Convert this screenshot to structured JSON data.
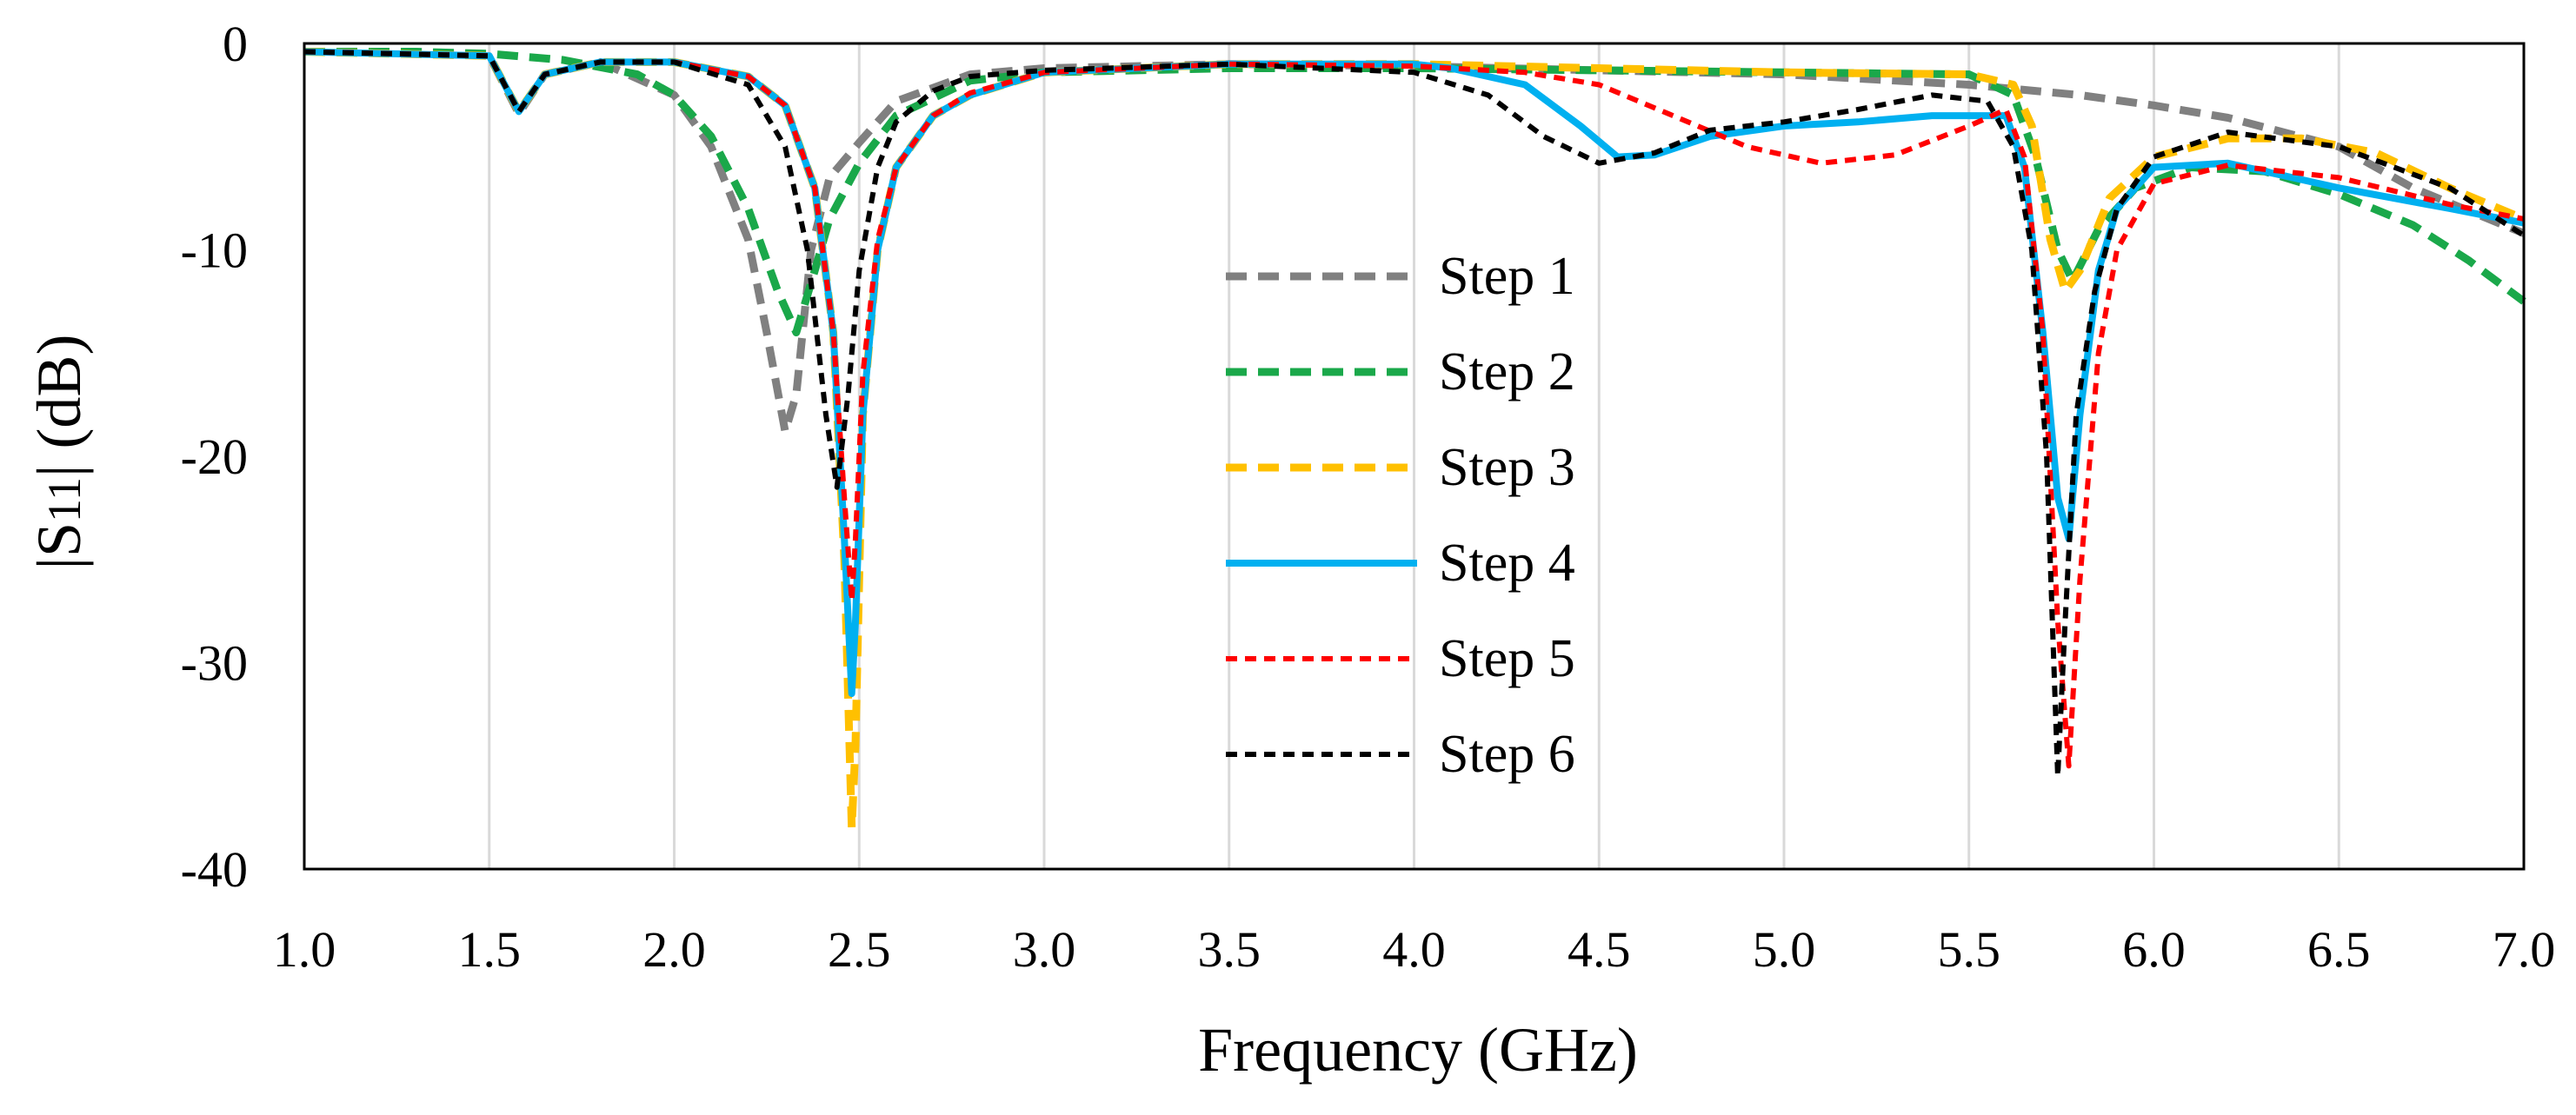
{
  "chart_data": {
    "type": "line",
    "title": "",
    "xlabel": "Frequency (GHz)",
    "ylabel": "|S11| (dB)",
    "xlim": [
      1.0,
      7.0
    ],
    "ylim": [
      -40,
      0
    ],
    "xticks": [
      1.0,
      1.5,
      2.0,
      2.5,
      3.0,
      3.5,
      4.0,
      4.5,
      5.0,
      5.5,
      6.0,
      6.5,
      7.0
    ],
    "xtick_labels": [
      "1.0",
      "1.5",
      "2.0",
      "2.5",
      "3.0",
      "3.5",
      "4.0",
      "4.5",
      "5.0",
      "5.5",
      "6.0",
      "6.5",
      "7.0"
    ],
    "yticks": [
      0,
      -10,
      -20,
      -30,
      -40
    ],
    "ytick_labels": [
      "0",
      "-10",
      "-20",
      "-30",
      "-40"
    ],
    "grid": "vertical",
    "legend_position": "center",
    "series": [
      {
        "name": "Step 1",
        "color": "#808080",
        "style": "dashed-thick",
        "x": [
          1.0,
          1.3,
          1.5,
          1.58,
          1.65,
          1.8,
          2.0,
          2.1,
          2.2,
          2.25,
          2.3,
          2.33,
          2.37,
          2.42,
          2.5,
          2.6,
          2.8,
          3.0,
          3.5,
          4.0,
          4.5,
          5.0,
          5.5,
          5.8,
          6.0,
          6.2,
          6.5,
          6.7,
          7.0
        ],
        "y": [
          -0.4,
          -0.4,
          -0.6,
          -3.4,
          -1.5,
          -0.9,
          -2.5,
          -5.0,
          -9.5,
          -14.0,
          -18.8,
          -17.0,
          -10.0,
          -6.5,
          -4.8,
          -2.8,
          -1.5,
          -1.2,
          -1.0,
          -1.1,
          -1.3,
          -1.5,
          -2.0,
          -2.5,
          -3.0,
          -3.6,
          -5.0,
          -7.0,
          -9.2
        ]
      },
      {
        "name": "Step 2",
        "color": "#1aa84a",
        "style": "dashed-thick",
        "x": [
          1.0,
          1.3,
          1.5,
          1.7,
          1.9,
          2.0,
          2.1,
          2.2,
          2.28,
          2.33,
          2.38,
          2.42,
          2.5,
          2.6,
          2.8,
          3.0,
          3.5,
          4.0,
          4.5,
          5.0,
          5.5,
          5.62,
          5.68,
          5.74,
          5.78,
          5.85,
          5.95,
          6.1,
          6.3,
          6.5,
          6.7,
          6.85,
          7.0
        ],
        "y": [
          -0.4,
          -0.4,
          -0.5,
          -0.8,
          -1.5,
          -2.5,
          -4.5,
          -8.0,
          -12.0,
          -14.0,
          -11.0,
          -8.5,
          -5.8,
          -3.5,
          -1.8,
          -1.4,
          -1.2,
          -1.2,
          -1.3,
          -1.4,
          -1.5,
          -2.5,
          -5.5,
          -10.0,
          -11.5,
          -9.0,
          -7.0,
          -6.0,
          -6.2,
          -7.3,
          -8.8,
          -10.5,
          -12.5
        ]
      },
      {
        "name": "Step 3",
        "color": "#ffc000",
        "style": "dashed-thick",
        "x": [
          1.0,
          1.5,
          1.58,
          1.65,
          1.8,
          2.0,
          2.2,
          2.3,
          2.38,
          2.43,
          2.46,
          2.48,
          2.49,
          2.51,
          2.55,
          2.6,
          2.7,
          2.8,
          3.0,
          3.5,
          4.0,
          4.5,
          5.0,
          5.5,
          5.62,
          5.67,
          5.72,
          5.76,
          5.8,
          5.88,
          6.0,
          6.2,
          6.4,
          6.6,
          6.8,
          7.0
        ],
        "y": [
          -0.4,
          -0.6,
          -3.3,
          -1.5,
          -0.9,
          -0.9,
          -1.6,
          -3.0,
          -7.0,
          -14.0,
          -25.0,
          -38.0,
          -34.0,
          -18.0,
          -10.0,
          -6.0,
          -3.5,
          -2.5,
          -1.4,
          -1.0,
          -1.0,
          -1.2,
          -1.4,
          -1.5,
          -2.0,
          -4.0,
          -9.5,
          -12.0,
          -11.0,
          -7.5,
          -5.5,
          -4.6,
          -4.6,
          -5.3,
          -7.0,
          -8.5
        ]
      },
      {
        "name": "Step 4",
        "color": "#00b0f0",
        "style": "solid",
        "x": [
          1.0,
          1.5,
          1.58,
          1.65,
          1.8,
          2.0,
          2.2,
          2.3,
          2.38,
          2.43,
          2.46,
          2.48,
          2.49,
          2.51,
          2.55,
          2.6,
          2.7,
          2.8,
          3.0,
          3.5,
          4.0,
          4.1,
          4.3,
          4.45,
          4.55,
          4.65,
          4.8,
          5.0,
          5.2,
          5.4,
          5.6,
          5.65,
          5.7,
          5.74,
          5.77,
          5.8,
          5.85,
          5.9,
          6.0,
          6.2,
          6.5,
          6.8,
          7.0
        ],
        "y": [
          -0.4,
          -0.6,
          -3.3,
          -1.5,
          -0.9,
          -0.9,
          -1.6,
          -3.0,
          -7.0,
          -14.0,
          -24.0,
          -31.5,
          -28.0,
          -18.0,
          -10.0,
          -6.0,
          -3.5,
          -2.5,
          -1.4,
          -1.0,
          -1.0,
          -1.2,
          -2.0,
          -4.0,
          -5.5,
          -5.4,
          -4.5,
          -4.0,
          -3.8,
          -3.5,
          -3.5,
          -6.0,
          -14.0,
          -22.0,
          -24.0,
          -18.0,
          -11.0,
          -8.0,
          -6.0,
          -5.8,
          -7.0,
          -8.0,
          -8.7
        ]
      },
      {
        "name": "Step 5",
        "color": "#ff0000",
        "style": "dashed-thin",
        "x": [
          1.0,
          1.5,
          1.58,
          1.65,
          1.8,
          2.0,
          2.2,
          2.3,
          2.38,
          2.43,
          2.46,
          2.48,
          2.49,
          2.51,
          2.55,
          2.6,
          2.7,
          2.8,
          3.0,
          3.5,
          4.0,
          4.3,
          4.5,
          4.7,
          4.9,
          5.1,
          5.3,
          5.5,
          5.6,
          5.65,
          5.7,
          5.74,
          5.77,
          5.8,
          5.85,
          5.9,
          6.0,
          6.2,
          6.5,
          6.8,
          7.0
        ],
        "y": [
          -0.4,
          -0.6,
          -3.3,
          -1.5,
          -0.9,
          -0.9,
          -1.6,
          -3.0,
          -7.0,
          -14.0,
          -22.0,
          -27.0,
          -24.0,
          -16.0,
          -9.5,
          -6.0,
          -3.5,
          -2.4,
          -1.4,
          -1.0,
          -1.1,
          -1.4,
          -2.0,
          -3.5,
          -5.0,
          -5.8,
          -5.4,
          -4.0,
          -3.2,
          -5.5,
          -14.0,
          -28.0,
          -35.0,
          -26.0,
          -15.0,
          -10.0,
          -6.8,
          -5.9,
          -6.5,
          -7.8,
          -8.5
        ]
      },
      {
        "name": "Step 6",
        "color": "#000000",
        "style": "dashed-thin",
        "x": [
          1.0,
          1.5,
          1.58,
          1.65,
          1.8,
          2.0,
          2.2,
          2.3,
          2.36,
          2.41,
          2.44,
          2.47,
          2.5,
          2.55,
          2.6,
          2.7,
          2.8,
          3.0,
          3.5,
          4.0,
          4.2,
          4.35,
          4.5,
          4.65,
          4.8,
          5.0,
          5.2,
          5.4,
          5.55,
          5.62,
          5.67,
          5.71,
          5.74,
          5.76,
          5.79,
          5.84,
          5.9,
          6.0,
          6.2,
          6.5,
          6.8,
          7.0
        ],
        "y": [
          -0.4,
          -0.6,
          -3.3,
          -1.5,
          -0.9,
          -0.9,
          -2.0,
          -5.0,
          -10.0,
          -18.0,
          -21.5,
          -17.0,
          -11.0,
          -6.0,
          -3.8,
          -2.3,
          -1.6,
          -1.3,
          -1.0,
          -1.4,
          -2.5,
          -4.5,
          -5.8,
          -5.3,
          -4.2,
          -3.8,
          -3.2,
          -2.5,
          -2.8,
          -5.0,
          -10.0,
          -20.0,
          -35.5,
          -28.0,
          -18.0,
          -12.0,
          -8.0,
          -5.5,
          -4.3,
          -5.0,
          -7.0,
          -9.3
        ]
      }
    ]
  }
}
